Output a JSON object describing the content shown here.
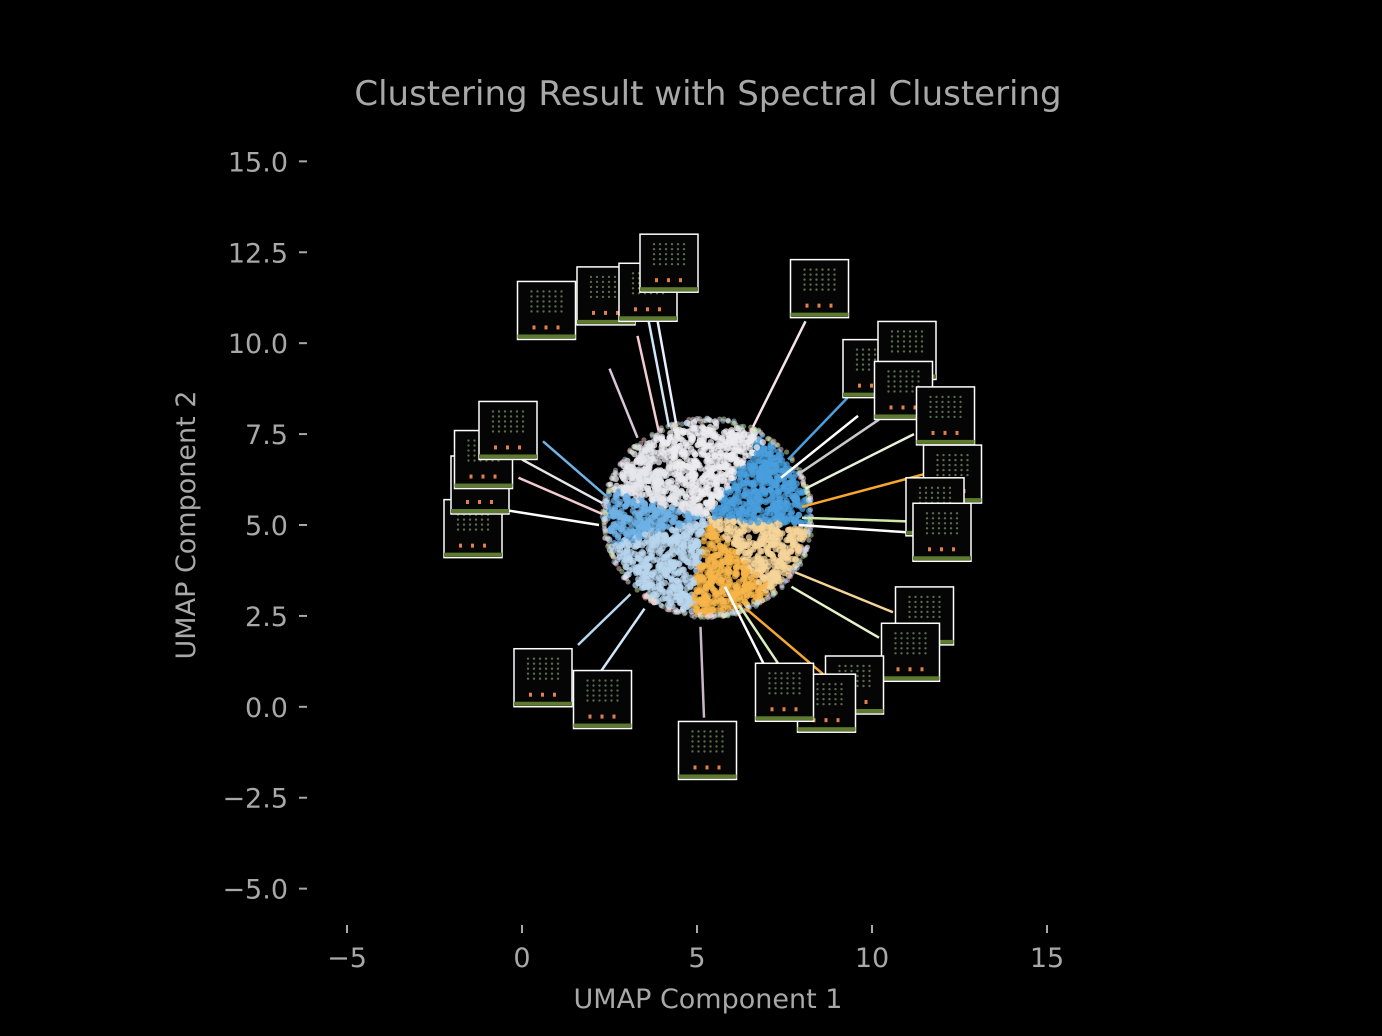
{
  "chart_data": {
    "type": "scatter",
    "title": "Clustering Result with Spectral Clustering",
    "xlabel": "UMAP Component 1",
    "ylabel": "UMAP Component 2",
    "xlim": [
      -6.2,
      16.8
    ],
    "ylim": [
      -6.0,
      16.0
    ],
    "x_ticks": [
      -5,
      0,
      5,
      10,
      15
    ],
    "x_tick_labels": [
      "−5",
      "0",
      "5",
      "10",
      "15"
    ],
    "y_ticks": [
      15.0,
      12.5,
      10.0,
      7.5,
      5.0,
      2.5,
      0.0,
      -2.5,
      -5.0
    ],
    "y_tick_labels": [
      "15.0",
      "12.5",
      "10.0",
      "7.5",
      "5.0",
      "2.5",
      "0.0",
      "−2.5",
      "−5.0"
    ],
    "grid": false,
    "legend": "none",
    "colors": {
      "background": "#000000",
      "text": "#a8a8a8"
    },
    "clusters": [
      {
        "center": [
          4.7,
          6.3
        ],
        "angle_range": [
          55,
          125
        ],
        "color": "#ececf0"
      },
      {
        "center": [
          7.2,
          6.1
        ],
        "angle_range": [
          -5,
          55
        ],
        "color": "#4a9fde"
      },
      {
        "center": [
          7.6,
          4.2
        ],
        "angle_range": [
          -50,
          -5
        ],
        "color": "#f5d49a"
      },
      {
        "center": [
          5.8,
          3.4
        ],
        "angle_range": [
          -100,
          -50
        ],
        "color": "#f7b64a"
      },
      {
        "center": [
          3.6,
          3.9
        ],
        "angle_range": [
          -165,
          -100
        ],
        "color": "#b8d6ee"
      },
      {
        "center": [
          2.9,
          5.4
        ],
        "angle_range": [
          165,
          210
        ],
        "color": "#6fb2e6"
      },
      {
        "center": [
          3.8,
          6.6
        ],
        "angle_range": [
          125,
          165
        ],
        "color": "#e5e6ec"
      }
    ],
    "blob": {
      "center": [
        5.3,
        5.2
      ],
      "radius_x": 5.8,
      "radius_y": 5.3
    },
    "thumbnails": [
      {
        "anchor": [
          3.3,
          7.4
        ],
        "tip": [
          2.5,
          9.3
        ],
        "box": [
          0.7,
          10.9
        ],
        "line_color": "#d9c6d9"
      },
      {
        "anchor": [
          3.9,
          7.6
        ],
        "tip": [
          3.3,
          10.2
        ],
        "box": [
          2.4,
          11.3
        ],
        "line_color": "#f3cbd2"
      },
      {
        "anchor": [
          4.2,
          7.7
        ],
        "tip": [
          3.6,
          10.7
        ],
        "box": [
          3.6,
          11.4
        ],
        "line_color": "#cfe7f8"
      },
      {
        "anchor": [
          4.4,
          7.8
        ],
        "tip": [
          3.8,
          11.0
        ],
        "box": [
          4.2,
          12.2
        ],
        "line_color": "#e8f0ff"
      },
      {
        "anchor": [
          6.6,
          7.7
        ],
        "tip": [
          8.1,
          10.6
        ],
        "box": [
          8.5,
          11.5
        ],
        "line_color": "#f6e4ea"
      },
      {
        "anchor": [
          7.6,
          6.8
        ],
        "tip": [
          9.3,
          8.5
        ],
        "box": [
          10.0,
          9.3
        ],
        "line_color": "#4a9fde"
      },
      {
        "anchor": [
          7.4,
          6.3
        ],
        "tip": [
          9.6,
          8.0
        ],
        "box": [
          11.0,
          9.8
        ],
        "line_color": "#ffffff"
      },
      {
        "anchor": [
          7.9,
          6.4
        ],
        "tip": [
          10.2,
          7.9
        ],
        "box": [
          10.9,
          8.7
        ],
        "line_color": "#c9c9c9"
      },
      {
        "anchor": [
          8.1,
          6.0
        ],
        "tip": [
          11.2,
          7.5
        ],
        "box": [
          12.1,
          8.0
        ],
        "line_color": "#e7f2d8"
      },
      {
        "anchor": [
          8.0,
          5.5
        ],
        "tip": [
          11.5,
          6.4
        ],
        "box": [
          12.3,
          6.4
        ],
        "line_color": "#f7a62f"
      },
      {
        "anchor": [
          8.0,
          5.2
        ],
        "tip": [
          11.0,
          5.1
        ],
        "box": [
          11.8,
          5.5
        ],
        "line_color": "#cfe8a8"
      },
      {
        "anchor": [
          7.9,
          5.0
        ],
        "tip": [
          11.0,
          4.8
        ],
        "box": [
          12.0,
          4.8
        ],
        "line_color": "#ffffff"
      },
      {
        "anchor": [
          7.8,
          3.7
        ],
        "tip": [
          10.6,
          2.6
        ],
        "box": [
          11.5,
          2.5
        ],
        "line_color": "#f5d49a"
      },
      {
        "anchor": [
          7.7,
          3.3
        ],
        "tip": [
          10.2,
          1.9
        ],
        "box": [
          11.1,
          1.5
        ],
        "line_color": "#e8f2c8"
      },
      {
        "anchor": [
          6.4,
          2.7
        ],
        "tip": [
          8.6,
          0.9
        ],
        "box": [
          9.5,
          0.6
        ],
        "line_color": "#f7a62f"
      },
      {
        "anchor": [
          6.2,
          2.8
        ],
        "tip": [
          7.8,
          0.5
        ],
        "box": [
          8.7,
          0.1
        ],
        "line_color": "#dbeebc"
      },
      {
        "anchor": [
          5.8,
          3.3
        ],
        "tip": [
          7.0,
          1.0
        ],
        "box": [
          7.5,
          0.4
        ],
        "line_color": "#ffffff"
      },
      {
        "anchor": [
          5.1,
          2.2
        ],
        "tip": [
          5.2,
          -0.3
        ],
        "box": [
          5.3,
          -1.2
        ],
        "line_color": "#c9b6c9"
      },
      {
        "anchor": [
          3.5,
          2.7
        ],
        "tip": [
          2.2,
          0.9
        ],
        "box": [
          2.3,
          0.2
        ],
        "line_color": "#cfe7f8"
      },
      {
        "anchor": [
          3.1,
          3.1
        ],
        "tip": [
          1.6,
          1.7
        ],
        "box": [
          0.6,
          0.8
        ],
        "line_color": "#b8d6ee"
      },
      {
        "anchor": [
          2.2,
          5.0
        ],
        "tip": [
          -0.4,
          5.4
        ],
        "box": [
          -1.4,
          4.9
        ],
        "line_color": "#ffffff"
      },
      {
        "anchor": [
          2.3,
          5.3
        ],
        "tip": [
          -0.1,
          6.3
        ],
        "box": [
          -1.2,
          6.1
        ],
        "line_color": "#f3cbd2"
      },
      {
        "anchor": [
          2.3,
          5.6
        ],
        "tip": [
          0.0,
          6.8
        ],
        "box": [
          -1.1,
          6.8
        ],
        "line_color": "#e5e6ec"
      },
      {
        "anchor": [
          2.4,
          5.8
        ],
        "tip": [
          0.6,
          7.3
        ],
        "box": [
          -0.4,
          7.6
        ],
        "line_color": "#6fb2e6"
      }
    ]
  }
}
